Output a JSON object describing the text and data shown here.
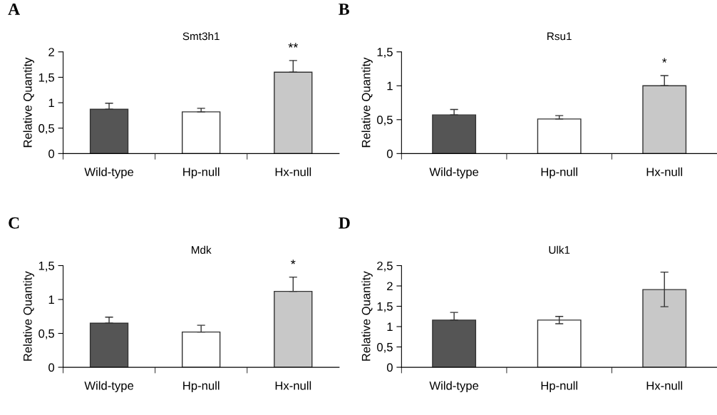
{
  "chart_data": [
    {
      "type": "bar",
      "title": "Smt3h1",
      "ylabel": "Relative Quantity",
      "categories": [
        "Wild-type",
        "Hp-null",
        "Hx-null"
      ],
      "values": [
        0.87,
        0.82,
        1.6
      ],
      "colors": [
        "#555555",
        "#ffffff",
        "#c8c8c8"
      ],
      "errors": [
        [
          0.87,
          0.99
        ],
        [
          0.82,
          0.89
        ],
        [
          1.6,
          1.83
        ]
      ],
      "ylim": [
        0,
        2
      ],
      "yticks": [
        0,
        {
          "value": 0.5,
          "label": "0,5"
        },
        1,
        {
          "value": 1.5,
          "label": "1,5"
        },
        2
      ],
      "annotations": [
        "A",
        "**"
      ]
    },
    {
      "type": "bar",
      "title": "Rsu1",
      "ylabel": "Relative Quantity",
      "categories": [
        "Wild-type",
        "Hp-null",
        "Hx-null"
      ],
      "values": [
        0.57,
        0.51,
        1.0
      ],
      "colors": [
        "#555555",
        "#ffffff",
        "#c8c8c8"
      ],
      "errors": [
        [
          0.57,
          0.65
        ],
        [
          0.51,
          0.56
        ],
        [
          1.0,
          1.15
        ]
      ],
      "ylim": [
        0,
        1.5
      ],
      "yticks": [
        0,
        {
          "value": 0.5,
          "label": "0,5"
        },
        1,
        {
          "value": 1.5,
          "label": "1,5"
        }
      ],
      "annotations": [
        "B",
        "*"
      ]
    },
    {
      "type": "bar",
      "title": "Mdk",
      "ylabel": "Relative Quantity",
      "categories": [
        "Wild-type",
        "Hp-null",
        "Hx-null"
      ],
      "values": [
        0.65,
        0.52,
        1.12
      ],
      "colors": [
        "#555555",
        "#ffffff",
        "#c8c8c8"
      ],
      "errors": [
        [
          0.65,
          0.74
        ],
        [
          0.52,
          0.62
        ],
        [
          1.12,
          1.33
        ]
      ],
      "ylim": [
        0,
        1.5
      ],
      "yticks": [
        0,
        {
          "value": 0.5,
          "label": "0,5"
        },
        1,
        {
          "value": 1.5,
          "label": "1,5"
        }
      ],
      "annotations": [
        "C",
        "*"
      ]
    },
    {
      "type": "bar",
      "title": "Ulk1",
      "ylabel": "Relative Quantity",
      "categories": [
        "Wild-type",
        "Hp-null",
        "Hx-null"
      ],
      "values": [
        1.16,
        1.16,
        1.91
      ],
      "colors": [
        "#555555",
        "#ffffff",
        "#c8c8c8"
      ],
      "errors": [
        [
          1.16,
          1.35
        ],
        [
          1.07,
          1.25
        ],
        [
          1.49,
          2.34
        ]
      ],
      "ylim": [
        0,
        2.5
      ],
      "yticks": [
        0,
        {
          "value": 0.5,
          "label": "0,5"
        },
        1,
        {
          "value": 1.5,
          "label": "1,5"
        },
        2,
        {
          "value": 2.5,
          "label": "2,5"
        }
      ],
      "annotations": [
        "D"
      ]
    }
  ]
}
